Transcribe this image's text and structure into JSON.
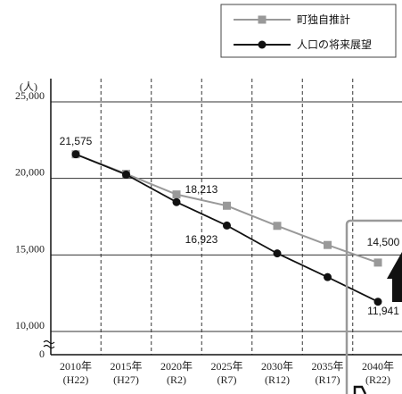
{
  "chart_data": {
    "type": "line",
    "y_unit": "(人)",
    "x": [
      {
        "year": "2010年",
        "era": "(H22)"
      },
      {
        "year": "2015年",
        "era": "(H27)"
      },
      {
        "year": "2020年",
        "era": "(R2)"
      },
      {
        "year": "2025年",
        "era": "(R7)"
      },
      {
        "year": "2030年",
        "era": "(R12)"
      },
      {
        "year": "2035年",
        "era": "(R17)"
      },
      {
        "year": "2040年",
        "era": "(R22)"
      }
    ],
    "y_ticks": [
      {
        "value": 25000,
        "label": "25,000"
      },
      {
        "value": 20000,
        "label": "20,000"
      },
      {
        "value": 15000,
        "label": "15,000"
      },
      {
        "value": 10000,
        "label": "10,000"
      },
      {
        "value": 0,
        "label": "0"
      }
    ],
    "axis_break": true,
    "grid": {
      "horizontal": true,
      "vertical_dashed": true
    },
    "legend_position": "top-right",
    "series": [
      {
        "name": "町独自推計",
        "marker": "square",
        "color": "#999999",
        "values": [
          21575,
          20300,
          18950,
          18213,
          16900,
          15650,
          14500
        ],
        "labels": [
          "21,575",
          "",
          "",
          "18,213",
          "",
          "",
          "14,500"
        ]
      },
      {
        "name": "人口の将来展望",
        "marker": "circle",
        "color": "#111111",
        "values": [
          21575,
          20250,
          18450,
          16923,
          15100,
          13550,
          11941
        ],
        "labels": [
          "",
          "",
          "",
          "16,923",
          "",
          "",
          "11,941"
        ]
      }
    ]
  }
}
